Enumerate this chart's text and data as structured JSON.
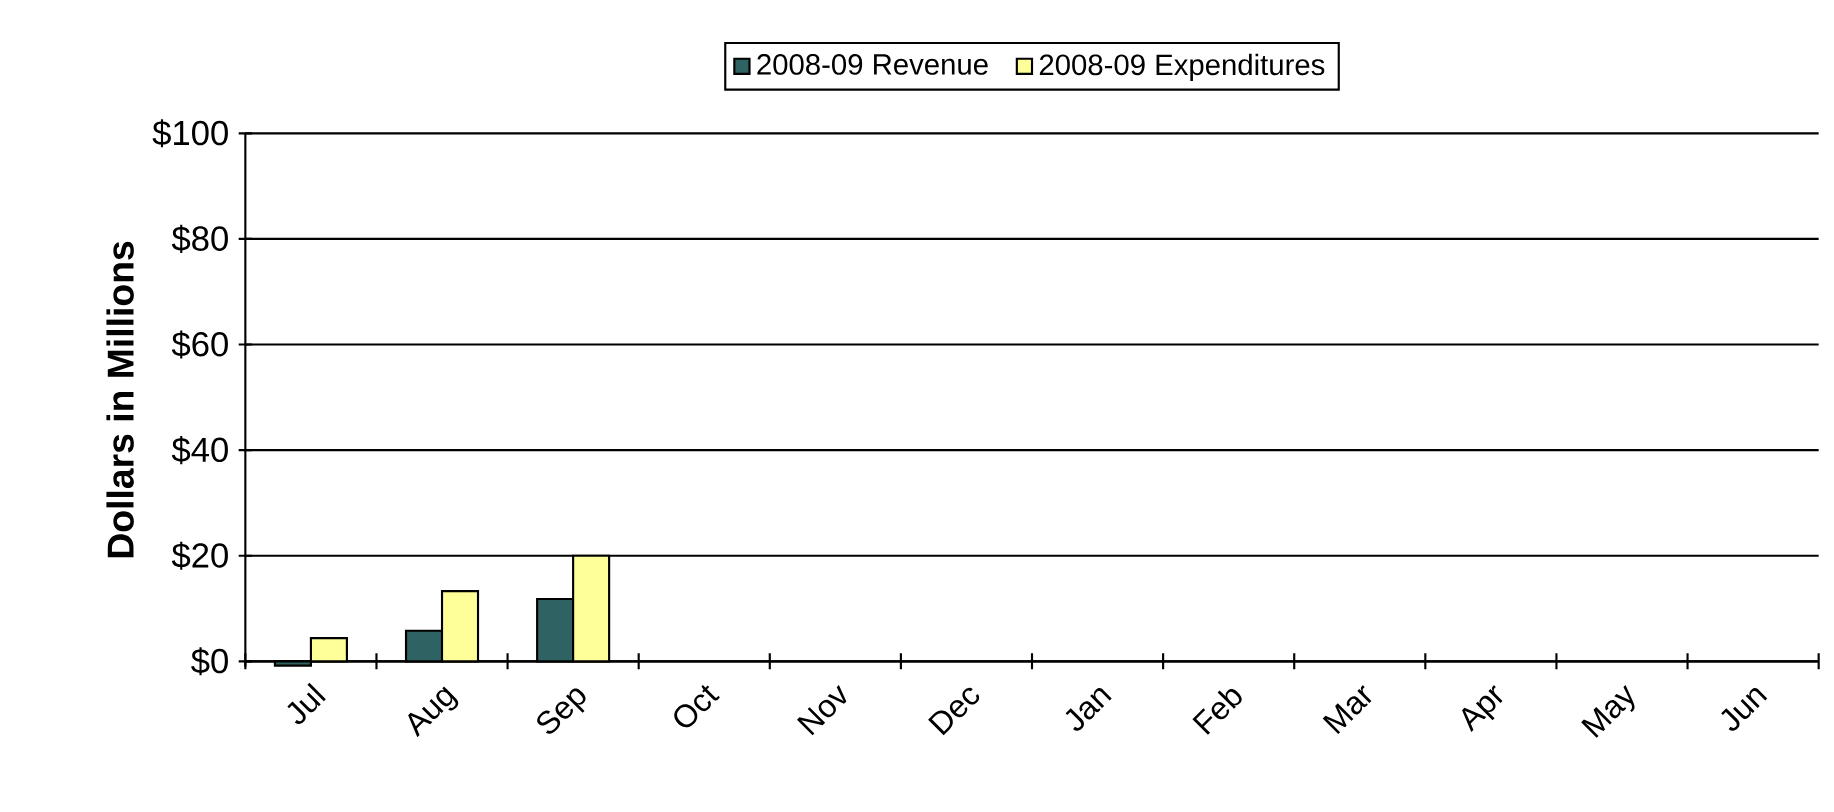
{
  "chart_data": {
    "type": "bar",
    "ylabel": "Dollars in Millions",
    "categories": [
      "Jul",
      "Aug",
      "Sep",
      "Oct",
      "Nov",
      "Dec",
      "Jan",
      "Feb",
      "Mar",
      "Apr",
      "May",
      "Jun"
    ],
    "series": [
      {
        "name": "2008-09 Revenue",
        "color": "#2f6262",
        "values": [
          -0.8,
          5.8,
          11.8,
          null,
          null,
          null,
          null,
          null,
          null,
          null,
          null,
          null
        ]
      },
      {
        "name": "2008-09 Expenditures",
        "color": "#ffff99",
        "values": [
          4.4,
          13.3,
          20,
          null,
          null,
          null,
          null,
          null,
          null,
          null,
          null,
          null
        ]
      }
    ],
    "ylim": [
      -1,
      100
    ],
    "yticks": [
      {
        "value": 0,
        "label": "$0"
      },
      {
        "value": 20,
        "label": "$20"
      },
      {
        "value": 40,
        "label": "$40"
      },
      {
        "value": 60,
        "label": "$60"
      },
      {
        "value": 80,
        "label": "$80"
      },
      {
        "value": 100,
        "label": "$100"
      }
    ],
    "grid": "y",
    "legend": "top"
  }
}
